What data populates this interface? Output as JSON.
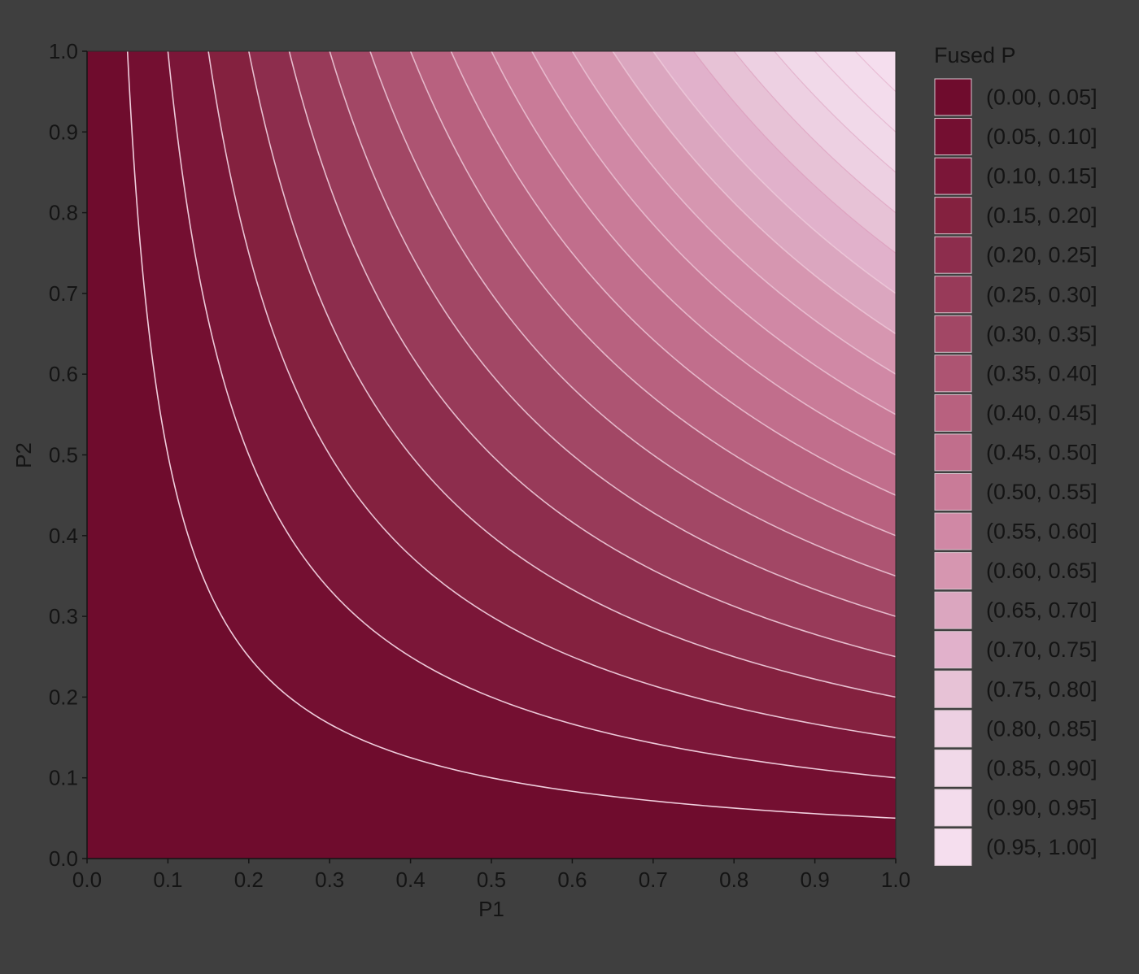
{
  "chart_data": {
    "type": "contour",
    "xlabel": "P1",
    "ylabel": "P2",
    "xlim": [
      0.0,
      1.0
    ],
    "ylim": [
      0.0,
      1.0
    ],
    "x_ticks": [
      "0.0",
      "0.1",
      "0.2",
      "0.3",
      "0.4",
      "0.5",
      "0.6",
      "0.7",
      "0.8",
      "0.9",
      "1.0"
    ],
    "y_ticks": [
      "0.0",
      "0.1",
      "0.2",
      "0.3",
      "0.4",
      "0.5",
      "0.6",
      "0.7",
      "0.8",
      "0.9",
      "1.0"
    ],
    "contour_levels": [
      0.05,
      0.1,
      0.15,
      0.2,
      0.25,
      0.3,
      0.35,
      0.4,
      0.45,
      0.5,
      0.55,
      0.6,
      0.65,
      0.7,
      0.75,
      0.8,
      0.85,
      0.9,
      0.95
    ],
    "legend": {
      "title": "Fused P",
      "position": "right",
      "entries": [
        {
          "label": "(0.00, 0.05]",
          "color": "#6f0c2d"
        },
        {
          "label": "(0.05, 0.10]",
          "color": "#740f31"
        },
        {
          "label": "(0.10, 0.15]",
          "color": "#7b1638"
        },
        {
          "label": "(0.15, 0.20]",
          "color": "#84213f"
        },
        {
          "label": "(0.20, 0.25]",
          "color": "#8d2d4d"
        },
        {
          "label": "(0.25, 0.30]",
          "color": "#983a59"
        },
        {
          "label": "(0.30, 0.35]",
          "color": "#a24765"
        },
        {
          "label": "(0.35, 0.40]",
          "color": "#ad5472"
        },
        {
          "label": "(0.40, 0.45]",
          "color": "#b8617f"
        },
        {
          "label": "(0.45, 0.50]",
          "color": "#c16e8c"
        },
        {
          "label": "(0.50, 0.55]",
          "color": "#c97b98"
        },
        {
          "label": "(0.55, 0.60]",
          "color": "#d088a5"
        },
        {
          "label": "(0.60, 0.65]",
          "color": "#d696b0"
        },
        {
          "label": "(0.65, 0.70]",
          "color": "#dba6bf"
        },
        {
          "label": "(0.70, 0.75]",
          "color": "#e1b1cb"
        },
        {
          "label": "(0.75, 0.80]",
          "color": "#e7c2d6"
        },
        {
          "label": "(0.80, 0.85]",
          "color": "#edd0e2"
        },
        {
          "label": "(0.85, 0.90]",
          "color": "#f1d9e9"
        },
        {
          "label": "(0.90, 0.95]",
          "color": "#f3dcec"
        },
        {
          "label": "(0.95, 1.00]",
          "color": "#f5deee"
        }
      ]
    }
  }
}
